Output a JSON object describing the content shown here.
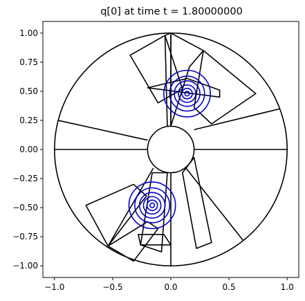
{
  "chart_data": {
    "type": "contour",
    "title": "q[0] at time t =     1.80000000",
    "xlabel": "",
    "ylabel": "",
    "xlim": [
      -1.1,
      1.1
    ],
    "ylim": [
      -1.1,
      1.1
    ],
    "x_ticks": [
      -1.0,
      -0.5,
      0.0,
      0.5,
      1.0
    ],
    "x_tick_labels": [
      "−1.0",
      "−0.5",
      "0.0",
      "0.5",
      "1.0"
    ],
    "y_ticks": [
      1.0,
      0.75,
      0.5,
      0.25,
      0.0,
      -0.25,
      -0.5,
      -0.75,
      -1.0
    ],
    "y_tick_labels": [
      "1.00",
      "0.75",
      "0.50",
      "0.25",
      "0.00",
      "−0.25",
      "−0.50",
      "−0.75",
      "−1.00"
    ],
    "grid": false,
    "domain": {
      "inner_circle": {
        "center": [
          0,
          0
        ],
        "radius": 0.2
      },
      "outer_circle": {
        "center": [
          0,
          0
        ],
        "radius": 1.0
      },
      "radial_lines": [
        {
          "from": [
            0.2,
            0.0
          ],
          "to": [
            1.0,
            0.0
          ]
        },
        {
          "from": [
            0.2,
            0.17
          ],
          "to": [
            0.94,
            0.35
          ]
        },
        {
          "from": [
            -0.2,
            0.0
          ],
          "to": [
            -1.0,
            0.0
          ]
        },
        {
          "from": [
            -0.2,
            0.08
          ],
          "to": [
            -0.97,
            0.25
          ]
        },
        {
          "from": [
            0.13,
            -0.16
          ],
          "to": [
            0.62,
            -0.78
          ]
        },
        {
          "from": [
            0.0,
            -0.2
          ],
          "to": [
            0.0,
            -1.0
          ]
        },
        {
          "from": [
            -0.15,
            -0.16
          ],
          "to": [
            -0.54,
            -0.83
          ]
        }
      ],
      "blocks": [
        {
          "corners": [
            [
              -0.35,
              0.81
            ],
            [
              -0.05,
              0.98
            ],
            [
              0.1,
              0.52
            ],
            [
              -0.11,
              0.4
            ]
          ]
        },
        {
          "corners": [
            [
              -0.05,
              0.98
            ],
            [
              0.0,
              1.0
            ],
            [
              0.0,
              0.2
            ],
            [
              -0.03,
              0.2
            ]
          ]
        },
        {
          "corners": [
            [
              0.0,
              1.0
            ],
            [
              0.0,
              0.2
            ],
            [
              0.16,
              0.71
            ],
            [
              0.28,
              0.85
            ]
          ]
        },
        {
          "corners": [
            [
              0.28,
              0.85
            ],
            [
              0.73,
              0.48
            ],
            [
              0.35,
              0.22
            ],
            [
              0.2,
              0.36
            ]
          ]
        },
        {
          "corners": [
            [
              -0.2,
              0.53
            ],
            [
              0.14,
              0.61
            ],
            [
              0.42,
              0.51
            ],
            [
              0.42,
              0.45
            ]
          ]
        },
        {
          "corners": [
            [
              -0.73,
              -0.48
            ],
            [
              -0.54,
              -0.83
            ],
            [
              -0.21,
              -0.4
            ],
            [
              -0.32,
              -0.3
            ]
          ]
        },
        {
          "corners": [
            [
              -0.54,
              -0.83
            ],
            [
              -0.32,
              -0.96
            ],
            [
              -0.11,
              -0.68
            ],
            [
              -0.2,
              -0.62
            ]
          ]
        },
        {
          "corners": [
            [
              -0.28,
              -0.73
            ],
            [
              -0.06,
              -0.73
            ],
            [
              0.0,
              -0.82
            ],
            [
              -0.26,
              -0.82
            ]
          ]
        },
        {
          "corners": [
            [
              -0.16,
              -0.2
            ],
            [
              -0.26,
              -0.82
            ],
            [
              -0.08,
              -0.88
            ],
            [
              -0.03,
              -0.2
            ]
          ]
        },
        {
          "corners": [
            [
              0.1,
              -0.2
            ],
            [
              0.22,
              -0.85
            ],
            [
              0.35,
              -0.8
            ],
            [
              0.2,
              -0.07
            ]
          ]
        }
      ]
    },
    "series": [
      {
        "center": [
          0.14,
          0.48
        ],
        "contour_radii": [
          0.2,
          0.15,
          0.11,
          0.075,
          0.045,
          0.02
        ],
        "color": "#0000cd"
      },
      {
        "center": [
          -0.16,
          -0.48
        ],
        "contour_radii": [
          0.2,
          0.15,
          0.11,
          0.075,
          0.045,
          0.02
        ],
        "color": "#0000cd"
      }
    ],
    "line_color": "#000000"
  }
}
